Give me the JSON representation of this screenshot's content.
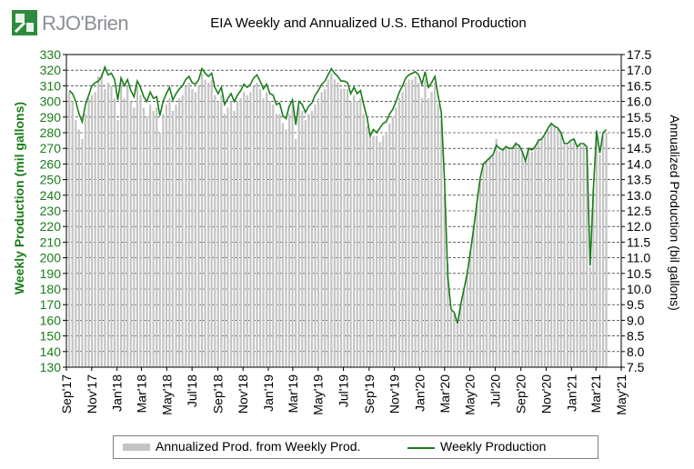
{
  "header": {
    "logo_text": "RJO'Brien",
    "logo_color": "#2e8b3d"
  },
  "chart_data": {
    "type": "bar+line",
    "title": "EIA Weekly and Annualized U.S. Ethanol Production",
    "ylabel_left": "Weekly Production (mil gallons)",
    "ylabel_right": "Annualized Production (bil gallons)",
    "ylim_left": [
      130,
      330
    ],
    "yticks_left": [
      "130",
      "140",
      "150",
      "160",
      "170",
      "180",
      "190",
      "200",
      "210",
      "220",
      "230",
      "240",
      "250",
      "260",
      "270",
      "280",
      "290",
      "300",
      "310",
      "320",
      "330"
    ],
    "ylim_right": [
      7.5,
      17.5
    ],
    "yticks_right": [
      "7.5",
      "8.0",
      "8.5",
      "9.0",
      "9.5",
      "10.0",
      "10.5",
      "11.0",
      "11.5",
      "12.0",
      "12.5",
      "13.0",
      "13.5",
      "14.0",
      "14.5",
      "15.0",
      "15.5",
      "16.0",
      "16.5",
      "17.0",
      "17.5"
    ],
    "xlim": [
      "2017-09-01",
      "2021-05-01"
    ],
    "xticks": [
      "Sep'17",
      "Nov'17",
      "Jan'18",
      "Mar'18",
      "May'18",
      "Jul'18",
      "Sep'18",
      "Nov'18",
      "Jan'19",
      "Mar'19",
      "May'19",
      "Jul'19",
      "Sep'19",
      "Nov'19",
      "Jan'20",
      "Mar'20",
      "May'20",
      "Jul'20",
      "Sep'20",
      "Nov'20",
      "Jan'21",
      "Mar'21",
      "May'21"
    ],
    "grid": "horizontal dashed",
    "legend_position": "bottom",
    "series": [
      {
        "name": "Annualized Prod. from Weekly Prod.",
        "type": "bar",
        "axis": "right",
        "color": "#c4c4c4",
        "values": [
          16.3,
          16.0,
          15.4,
          15.1,
          14.8,
          15.6,
          16.1,
          16.2,
          16.3,
          16.8,
          16.9,
          16.4,
          16.6,
          16.5,
          16.1,
          15.4,
          16.6,
          16.1,
          16.5,
          16.0,
          15.8,
          16.5,
          16.2,
          15.8,
          15.5,
          15.9,
          15.7,
          15.8,
          15.0,
          15.6,
          15.9,
          16.1,
          15.7,
          15.9,
          16.1,
          16.2,
          16.5,
          16.6,
          16.4,
          16.3,
          16.5,
          16.9,
          16.7,
          16.6,
          16.7,
          16.2,
          16.0,
          16.2,
          15.6,
          15.8,
          16.0,
          15.7,
          16.0,
          16.1,
          16.3,
          16.2,
          16.3,
          16.5,
          16.6,
          16.4,
          16.1,
          16.3,
          16.0,
          15.9,
          15.6,
          15.6,
          15.3,
          15.1,
          15.6,
          15.9,
          14.8,
          15.8,
          15.7,
          15.4,
          15.6,
          15.7,
          15.9,
          16.1,
          16.3,
          16.4,
          16.7,
          16.9,
          16.7,
          16.6,
          16.4,
          16.4,
          16.4,
          16.0,
          16.2,
          16.0,
          16.1,
          15.6,
          15.2,
          14.9,
          14.9,
          14.9,
          14.7,
          14.9,
          15.0,
          15.3,
          15.5,
          15.8,
          16.1,
          16.3,
          16.6,
          16.7,
          16.7,
          16.8,
          16.6,
          16.1,
          16.7,
          16.1,
          16.3,
          16.6,
          15.9,
          15.4,
          13.0,
          10.8,
          9.3,
          9.2,
          8.9,
          9.5,
          10.0,
          10.6,
          11.2,
          12.0,
          12.7,
          13.5,
          14.0,
          14.1,
          14.2,
          14.3,
          14.8,
          14.4,
          14.5,
          14.6,
          14.5,
          14.5,
          14.7,
          14.6,
          14.4,
          14.1,
          14.5,
          14.4,
          14.6,
          14.8,
          14.8,
          14.9,
          15.1,
          15.3,
          15.2,
          15.1,
          15.0,
          14.6,
          14.6,
          14.7,
          14.7,
          14.5,
          14.6,
          14.6,
          14.5,
          10.7,
          13.2,
          15.1,
          14.3,
          14.9,
          15.0
        ],
        "note_values_on": "right axis"
      },
      {
        "name": "Weekly Production",
        "type": "line",
        "axis": "left",
        "color": "#1a7d1a",
        "values": [
          307,
          305,
          300,
          292,
          287,
          298,
          304,
          310,
          312,
          313,
          316,
          322,
          317,
          318,
          314,
          301,
          315,
          310,
          314,
          307,
          303,
          313,
          309,
          303,
          300,
          306,
          302,
          303,
          291,
          300,
          305,
          309,
          301,
          305,
          308,
          310,
          314,
          316,
          312,
          311,
          314,
          321,
          318,
          316,
          318,
          309,
          305,
          309,
          298,
          302,
          305,
          300,
          304,
          307,
          311,
          309,
          311,
          315,
          317,
          313,
          308,
          311,
          305,
          304,
          298,
          299,
          291,
          289,
          297,
          301,
          285,
          300,
          298,
          293,
          297,
          299,
          304,
          307,
          311,
          313,
          317,
          321,
          318,
          316,
          313,
          313,
          312,
          305,
          309,
          305,
          307,
          298,
          290,
          278,
          282,
          280,
          283,
          286,
          287,
          292,
          295,
          300,
          306,
          310,
          315,
          317,
          318,
          319,
          317,
          311,
          319,
          309,
          312,
          316,
          304,
          293,
          248,
          188,
          167,
          165,
          158,
          170,
          180,
          190,
          204,
          219,
          235,
          251,
          260,
          262,
          264,
          266,
          272,
          270,
          269,
          271,
          270,
          270,
          273,
          272,
          268,
          262,
          270,
          269,
          271,
          275,
          276,
          279,
          283,
          286,
          284,
          283,
          280,
          273,
          273,
          275,
          276,
          271,
          273,
          273,
          271,
          195,
          244,
          281,
          267,
          280,
          282
        ]
      }
    ]
  }
}
